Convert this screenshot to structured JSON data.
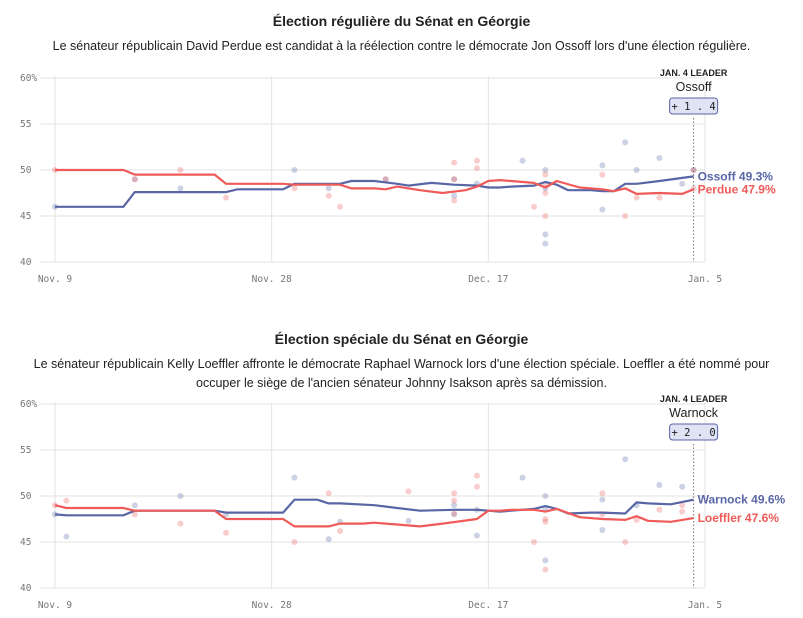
{
  "chart_data": [
    {
      "type": "line",
      "title": "Élection régulière du Sénat en Géorgie",
      "subtitle": "Le sénateur républicain David Perdue est candidat à la réélection contre le démocrate Jon Ossoff lors d'une élection régulière.",
      "x_tick_labels": [
        "Nov. 9",
        "Nov. 28",
        "Dec. 17",
        "Jan. 5"
      ],
      "x_tick_days": [
        0,
        19,
        38,
        57
      ],
      "ylim": [
        40,
        60
      ],
      "y_ticks": [
        "40",
        "45",
        "50",
        "55",
        "60%"
      ],
      "y_tick_values": [
        40,
        45,
        50,
        55,
        60
      ],
      "grid": true,
      "leader": {
        "label": "JAN. 4 LEADER",
        "name": "Ossoff",
        "margin": "+1.4",
        "day": 56
      },
      "series": [
        {
          "name": "Ossoff",
          "end_label": "Ossoff 49.3%",
          "color": "#5966a6",
          "x": [
            0,
            6,
            7,
            15,
            16,
            20,
            21,
            25,
            26,
            28,
            30,
            31,
            33,
            35,
            37,
            38,
            39,
            40,
            42,
            43,
            44,
            45,
            47,
            48,
            49,
            50,
            51,
            53,
            56
          ],
          "y": [
            46.0,
            46.0,
            47.6,
            47.6,
            47.9,
            47.9,
            48.5,
            48.5,
            48.8,
            48.8,
            48.5,
            48.3,
            48.6,
            48.4,
            48.3,
            48.1,
            48.1,
            48.2,
            48.3,
            48.7,
            48.4,
            47.8,
            47.8,
            47.7,
            47.7,
            48.5,
            48.5,
            48.8,
            49.3
          ]
        },
        {
          "name": "Perdue",
          "end_label": "Perdue 47.9%",
          "color": "#ef5b59",
          "x": [
            0,
            6,
            7,
            14,
            15,
            20,
            21,
            25,
            26,
            28,
            29,
            30,
            32,
            34,
            36,
            37,
            38,
            39,
            40,
            42,
            43,
            44,
            46,
            48,
            49,
            50,
            51,
            53,
            55,
            56
          ],
          "y": [
            50.0,
            50.0,
            49.5,
            49.5,
            48.5,
            48.5,
            48.4,
            48.4,
            48.0,
            48.0,
            47.9,
            48.2,
            47.8,
            47.5,
            47.8,
            48.2,
            48.8,
            48.9,
            48.8,
            48.6,
            48.1,
            48.8,
            48.1,
            47.9,
            47.7,
            48.0,
            47.4,
            47.5,
            47.4,
            47.9
          ]
        }
      ],
      "polls": [
        {
          "series": "Ossoff",
          "points": [
            [
              0,
              46.0
            ],
            [
              7,
              49.0
            ],
            [
              11,
              48.0
            ],
            [
              21,
              50.0
            ],
            [
              24,
              48.0
            ],
            [
              29,
              49.0
            ],
            [
              35,
              47.2
            ],
            [
              35,
              49.0
            ],
            [
              37,
              48.5
            ],
            [
              41,
              51.0
            ],
            [
              43,
              48.0
            ],
            [
              43,
              50.0
            ],
            [
              43,
              43.0
            ],
            [
              43,
              42.0
            ],
            [
              48,
              45.7
            ],
            [
              48,
              50.5
            ],
            [
              50,
              53.0
            ],
            [
              51,
              50.0
            ],
            [
              53,
              51.3
            ],
            [
              55,
              48.5
            ],
            [
              56,
              50.0
            ]
          ]
        },
        {
          "series": "Perdue",
          "points": [
            [
              0,
              50.0
            ],
            [
              7,
              49.0
            ],
            [
              11,
              50.0
            ],
            [
              15,
              47.0
            ],
            [
              21,
              48.0
            ],
            [
              24,
              47.2
            ],
            [
              25,
              46.0
            ],
            [
              29,
              49.0
            ],
            [
              35,
              46.7
            ],
            [
              35,
              49.0
            ],
            [
              35,
              50.8
            ],
            [
              37,
              50.2
            ],
            [
              37,
              51.0
            ],
            [
              42,
              46.0
            ],
            [
              43,
              47.5
            ],
            [
              43,
              48.5
            ],
            [
              43,
              49.5
            ],
            [
              43,
              45.0
            ],
            [
              48,
              49.5
            ],
            [
              50,
              45.0
            ],
            [
              51,
              47.0
            ],
            [
              53,
              47.0
            ],
            [
              56,
              48.0
            ],
            [
              56,
              50.0
            ]
          ]
        }
      ]
    },
    {
      "type": "line",
      "title": "Élection spéciale du Sénat en Géorgie",
      "subtitle": "Le sénateur républicain Kelly Loeffler affronte le démocrate Raphael Warnock lors d'une élection spéciale. Loeffler a été nommé pour occuper le siège de l'ancien sénateur Johnny Isakson après sa démission.",
      "x_tick_labels": [
        "Nov. 9",
        "Nov. 28",
        "Dec. 17",
        "Jan. 5"
      ],
      "x_tick_days": [
        0,
        19,
        38,
        57
      ],
      "ylim": [
        40,
        60
      ],
      "y_ticks": [
        "40",
        "45",
        "50",
        "55",
        "60%"
      ],
      "y_tick_values": [
        40,
        45,
        50,
        55,
        60
      ],
      "grid": true,
      "leader": {
        "label": "JAN. 4 LEADER",
        "name": "Warnock",
        "margin": "+2.0",
        "day": 56
      },
      "series": [
        {
          "name": "Warnock",
          "end_label": "Warnock 49.6%",
          "color": "#5966a6",
          "x": [
            0,
            1,
            6,
            7,
            14,
            15,
            20,
            21,
            23,
            24,
            25,
            28,
            30,
            32,
            35,
            37,
            38,
            39,
            40,
            42,
            43,
            44,
            45,
            47,
            48,
            50,
            51,
            52,
            54,
            56
          ],
          "y": [
            48.0,
            47.9,
            47.9,
            48.4,
            48.4,
            48.2,
            48.2,
            49.6,
            49.6,
            49.2,
            49.2,
            49.0,
            48.7,
            48.4,
            48.5,
            48.5,
            48.4,
            48.3,
            48.4,
            48.6,
            48.9,
            48.6,
            48.1,
            48.2,
            48.2,
            48.1,
            49.3,
            49.2,
            49.1,
            49.6
          ]
        },
        {
          "name": "Loeffler",
          "end_label": "Loeffler 47.6%",
          "color": "#ef5b59",
          "x": [
            0,
            1,
            6,
            7,
            14,
            15,
            20,
            21,
            24,
            25,
            27,
            28,
            30,
            32,
            34,
            37,
            38,
            39,
            40,
            42,
            43,
            44,
            46,
            48,
            50,
            51,
            52,
            54,
            56
          ],
          "y": [
            49.0,
            48.7,
            48.7,
            48.4,
            48.4,
            47.5,
            47.5,
            46.7,
            46.7,
            47.0,
            47.0,
            47.1,
            46.9,
            46.7,
            47.0,
            47.5,
            48.4,
            48.4,
            48.5,
            48.5,
            48.3,
            48.6,
            47.7,
            47.5,
            47.4,
            47.8,
            47.3,
            47.2,
            47.6
          ]
        }
      ],
      "polls": [
        {
          "series": "Warnock",
          "points": [
            [
              0,
              48.0
            ],
            [
              1,
              45.6
            ],
            [
              7,
              49.0
            ],
            [
              11,
              50.0
            ],
            [
              15,
              48.0
            ],
            [
              21,
              52.0
            ],
            [
              24,
              45.3
            ],
            [
              25,
              47.2
            ],
            [
              31,
              47.3
            ],
            [
              35,
              48.0
            ],
            [
              35,
              49.0
            ],
            [
              37,
              45.7
            ],
            [
              37,
              48.5
            ],
            [
              41,
              52.0
            ],
            [
              43,
              50.0
            ],
            [
              43,
              48.5
            ],
            [
              43,
              43.0
            ],
            [
              48,
              46.3
            ],
            [
              48,
              49.6
            ],
            [
              50,
              54.0
            ],
            [
              51,
              49.0
            ],
            [
              53,
              51.2
            ],
            [
              55,
              51.0
            ]
          ]
        },
        {
          "series": "Loeffler",
          "points": [
            [
              0,
              49.0
            ],
            [
              1,
              49.5
            ],
            [
              7,
              48.0
            ],
            [
              11,
              47.0
            ],
            [
              15,
              46.0
            ],
            [
              21,
              45.0
            ],
            [
              24,
              50.3
            ],
            [
              25,
              46.2
            ],
            [
              31,
              50.5
            ],
            [
              35,
              48.1
            ],
            [
              35,
              49.5
            ],
            [
              35,
              50.3
            ],
            [
              37,
              52.2
            ],
            [
              37,
              51.0
            ],
            [
              42,
              45.0
            ],
            [
              43,
              47.2
            ],
            [
              43,
              47.5
            ],
            [
              43,
              42.0
            ],
            [
              48,
              50.3
            ],
            [
              48,
              48.0
            ],
            [
              50,
              45.0
            ],
            [
              51,
              47.4
            ],
            [
              53,
              48.5
            ],
            [
              55,
              49.0
            ],
            [
              55,
              48.3
            ]
          ]
        }
      ]
    }
  ]
}
